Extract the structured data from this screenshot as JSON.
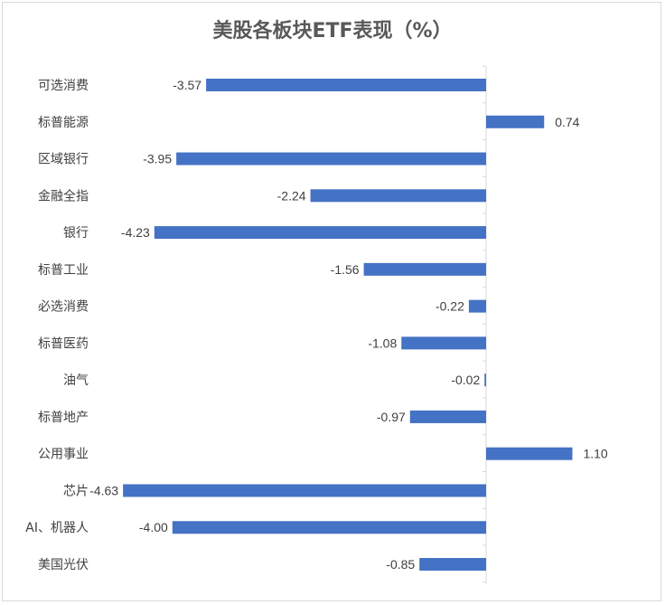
{
  "chart_data": {
    "type": "bar",
    "orientation": "horizontal",
    "title": "美股各板块ETF表现（%）",
    "categories": [
      "可选消费",
      "标普能源",
      "区域银行",
      "金融全指",
      "银行",
      "标普工业",
      "必选消费",
      "标普医药",
      "油气",
      "标普地产",
      "公用事业",
      "芯片",
      "AI、机器人",
      "美国光伏"
    ],
    "values": [
      -3.57,
      0.74,
      -3.95,
      -2.24,
      -4.23,
      -1.56,
      -0.22,
      -1.08,
      -0.02,
      -0.97,
      1.1,
      -4.63,
      -4.0,
      -0.85
    ],
    "value_labels": [
      "-3.57",
      "0.74",
      "-3.95",
      "-2.24",
      "-4.23",
      "-1.56",
      "-0.22",
      "-1.08",
      "-0.02",
      "-0.97",
      "1.10",
      "-4.63",
      "-4.00",
      "-0.85"
    ],
    "bar_color": "#4472c4",
    "grid": false,
    "legend": "none"
  }
}
